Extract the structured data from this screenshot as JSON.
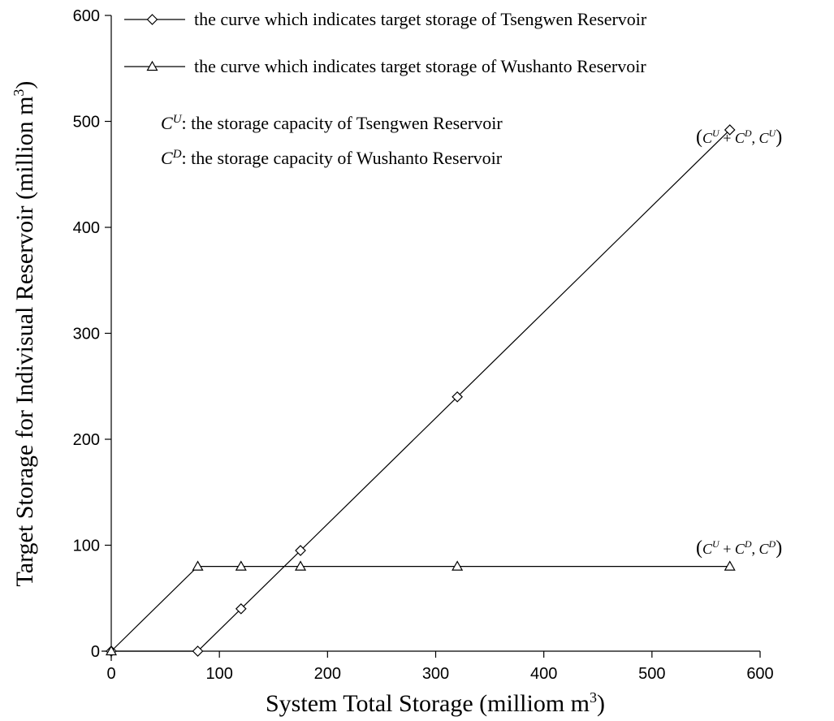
{
  "chart_data": {
    "type": "line",
    "xlabel": "System Total Storage (milliom m",
    "xlabel_sup": "3",
    "xlabel_tail": ")",
    "ylabel": "Target Storage for Indivisual Reservoir (million m",
    "ylabel_sup": "3",
    "ylabel_tail": ")",
    "xlim": [
      0,
      600
    ],
    "ylim": [
      0,
      600
    ],
    "x_ticks": [
      "0",
      "100",
      "200",
      "300",
      "400",
      "500",
      "600"
    ],
    "y_ticks": [
      "0",
      "100",
      "200",
      "300",
      "400",
      "500",
      "600"
    ],
    "grid": false,
    "legend_position": "top-left",
    "series": [
      {
        "name": "the curve which indicates target storage of Tsengwen Reservoir",
        "marker": "diamond",
        "x": [
          0,
          80,
          120,
          175,
          320,
          572
        ],
        "y": [
          0,
          0,
          40,
          95,
          240,
          492
        ]
      },
      {
        "name": "the curve which indicates target storage of Wushanto Reservoir",
        "marker": "triangle",
        "x": [
          0,
          80,
          120,
          175,
          320,
          572
        ],
        "y": [
          0,
          80,
          80,
          80,
          80,
          80
        ]
      }
    ],
    "notes": [
      {
        "symbol": "C",
        "sup": "U",
        "text": ": the storage capacity of Tsengwen Reservoir"
      },
      {
        "symbol": "C",
        "sup": "D",
        "text": ": the storage capacity of Wushanto Reservoir"
      }
    ],
    "annotations": [
      {
        "label": "(C^U + C^D, C^U)",
        "at": [
          572,
          492
        ]
      },
      {
        "label": "(C^U + C^D, C^D)",
        "at": [
          572,
          80
        ]
      }
    ]
  }
}
